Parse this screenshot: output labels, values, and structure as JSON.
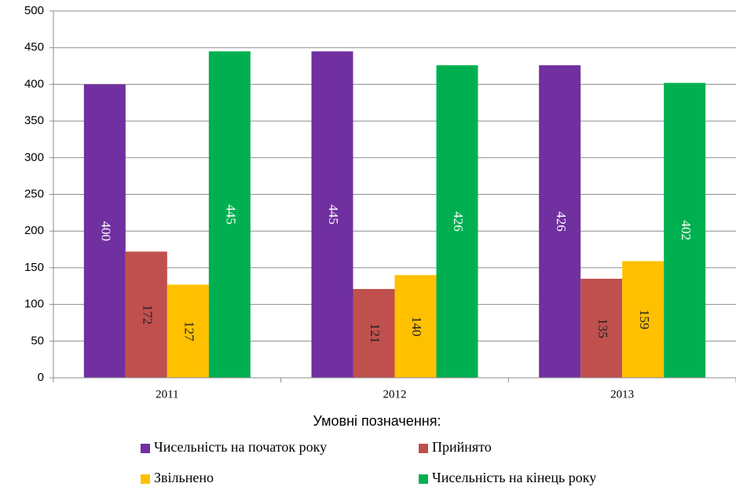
{
  "chart_data": {
    "type": "bar",
    "categories": [
      "2011",
      "2012",
      "2013"
    ],
    "series": [
      {
        "name": "Чисельність на початок року",
        "color": "#7030a0",
        "values": [
          400,
          445,
          426
        ]
      },
      {
        "name": "Прийнято",
        "color": "#c0504d",
        "values": [
          172,
          121,
          135
        ]
      },
      {
        "name": "Звільнено",
        "color": "#ffc000",
        "values": [
          127,
          140,
          159
        ]
      },
      {
        "name": "Чисельність на кінець року",
        "color": "#00b050",
        "values": [
          445,
          426,
          402
        ]
      }
    ],
    "ylim": [
      0,
      500
    ],
    "yticks": [
      0,
      50,
      100,
      150,
      200,
      250,
      300,
      350,
      400,
      450,
      500
    ],
    "grid": true,
    "legend_title": "Умовні позначення:",
    "legend": "bottom"
  }
}
